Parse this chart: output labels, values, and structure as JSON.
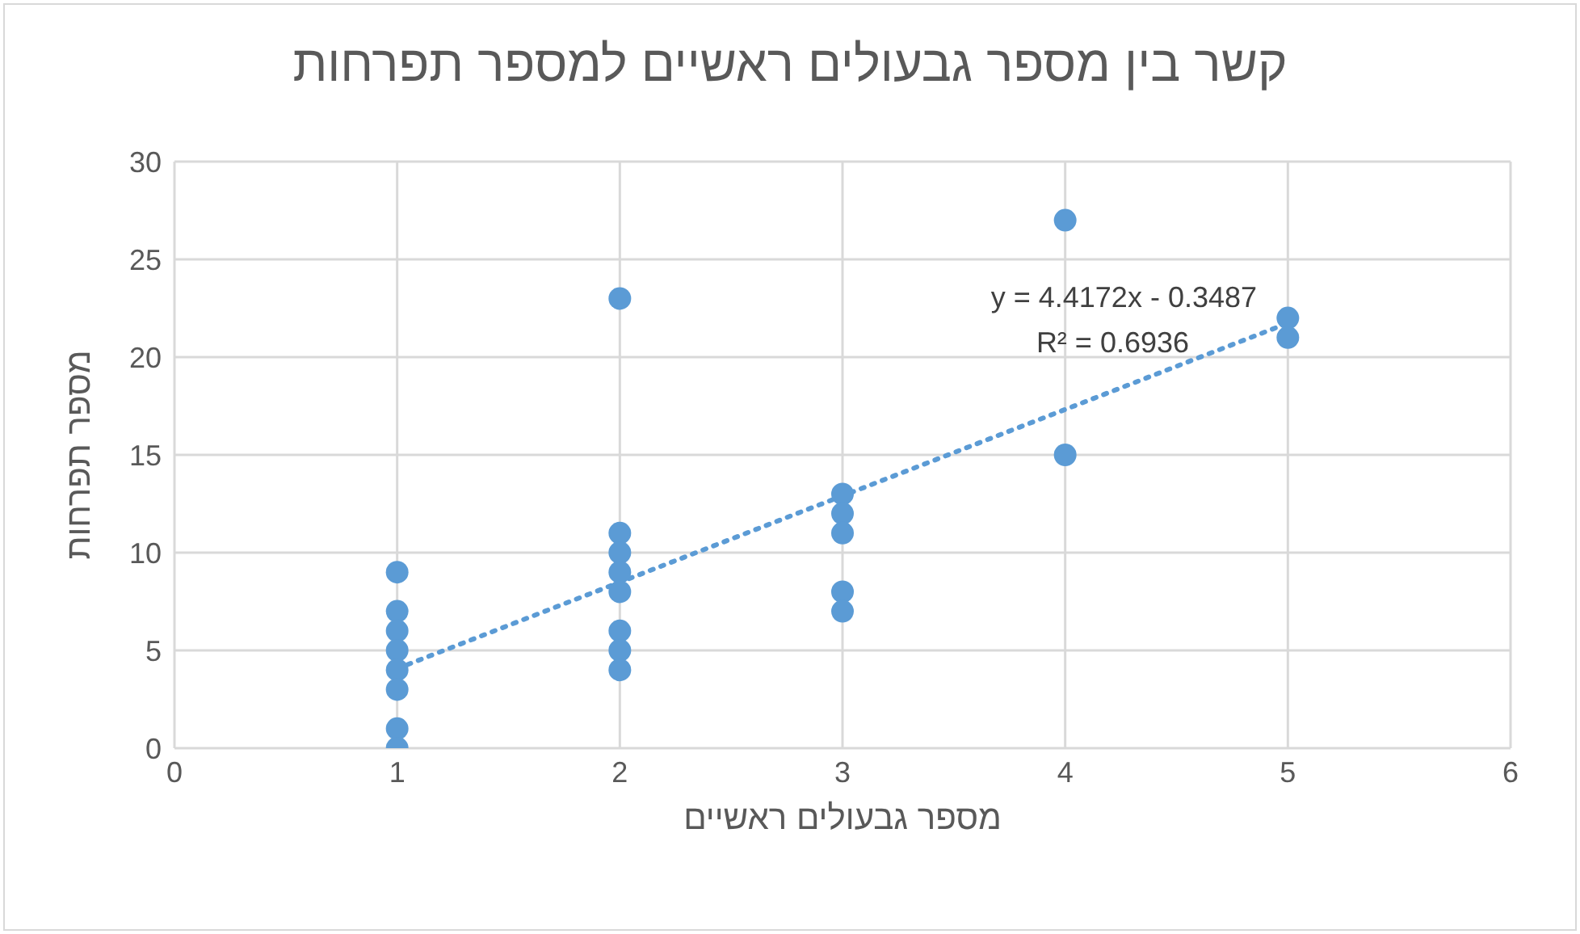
{
  "chart_data": {
    "type": "scatter",
    "title": "קשר בין מספר גבעולים ראשיים למספר תפרחות",
    "xlabel": "מספר גבעולים ראשיים",
    "ylabel": "מספר תפרחות",
    "series": [
      {
        "color": "#5b9bd5",
        "marker": "circle",
        "x": [
          1,
          1,
          1,
          1,
          1,
          1,
          1,
          1,
          2,
          2,
          2,
          2,
          2,
          2,
          2,
          2,
          3,
          3,
          3,
          3,
          3,
          4,
          4,
          5,
          5
        ],
        "values": [
          9,
          7,
          6,
          5,
          4,
          3,
          1,
          0,
          23,
          11,
          10,
          9,
          8,
          6,
          5,
          4,
          13,
          12,
          11,
          8,
          7,
          27,
          15,
          22,
          21
        ]
      },
      {
        "type": "line",
        "color": "#5b9bd5",
        "marker": "none",
        "line_style": "dotted",
        "x": [
          1,
          5
        ],
        "values": [
          4.07,
          21.74
        ]
      }
    ],
    "annotations": [
      "y = 4.4172x - 0.3487",
      "R² = 0.6936"
    ],
    "xlim": [
      0,
      6
    ],
    "xticks": [
      0,
      1,
      2,
      3,
      4,
      5,
      6
    ],
    "ylim": [
      0,
      30
    ],
    "yticks": [
      0,
      5,
      10,
      15,
      20,
      25,
      30
    ],
    "grid": true,
    "legend": false
  }
}
